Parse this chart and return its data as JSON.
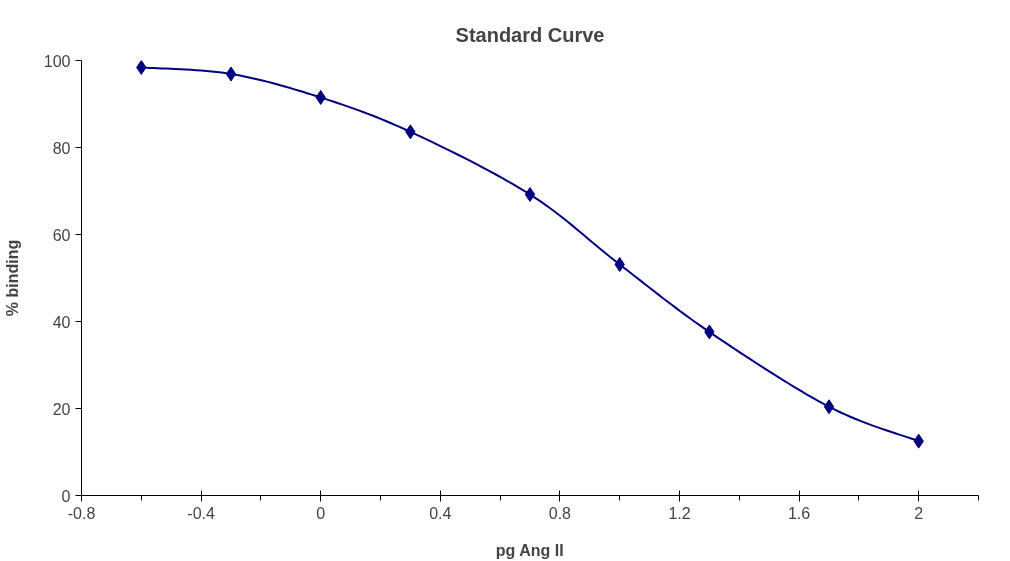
{
  "chart_data": {
    "type": "line",
    "title": "Standard Curve",
    "xlabel": "pg Ang II",
    "ylabel": "% binding",
    "x": [
      -0.6,
      -0.3,
      0,
      0.3,
      0.7,
      1.0,
      1.3,
      1.7,
      2.0
    ],
    "series": [
      {
        "color": "#000080",
        "values": [
          98.4,
          96.9,
          91.5,
          83.6,
          69.2,
          53.1,
          37.6,
          20.4,
          12.5
        ]
      }
    ],
    "marker": "diamond",
    "xlim": [
      -0.8,
      2.2
    ],
    "xticks": [
      -0.8,
      {
        "value": -0.6,
        "label": null
      },
      -0.4,
      {
        "value": -0.2,
        "label": null
      },
      0,
      {
        "value": 0.2,
        "label": null
      },
      0.4,
      {
        "value": 0.6,
        "label": null
      },
      0.8,
      {
        "value": 1.0,
        "label": null
      },
      1.2,
      {
        "value": 1.4,
        "label": null
      },
      1.6,
      {
        "value": 1.8,
        "label": null
      },
      2,
      {
        "value": 2.2,
        "label": null
      }
    ],
    "ylim": [
      0,
      100
    ],
    "yticks": [
      0,
      20,
      40,
      60,
      80,
      100
    ]
  }
}
